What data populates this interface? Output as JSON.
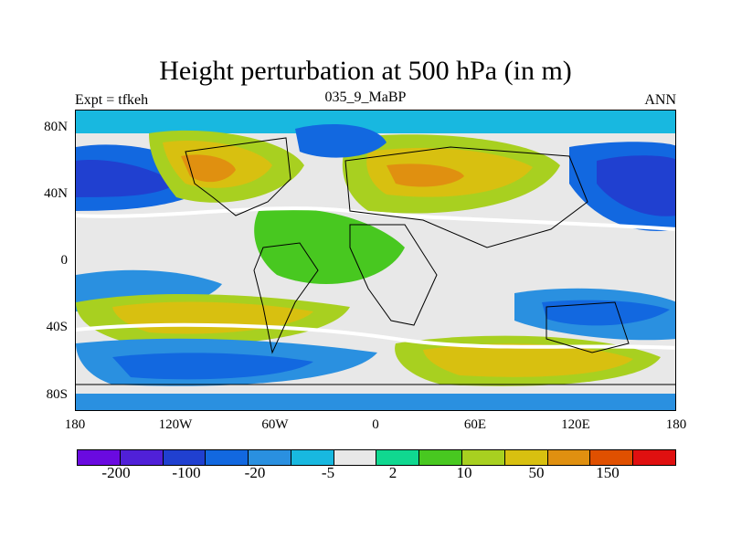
{
  "title": "Height perturbation at 500 hPa (in m)",
  "left_label": "Expt = tfkeh",
  "center_label": "035_9_MaBP",
  "right_label": "ANN",
  "y_ticks": [
    "80N",
    "40N",
    "0",
    "40S",
    "80S"
  ],
  "x_ticks": [
    "180",
    "120W",
    "60W",
    "0",
    "60E",
    "120E",
    "180"
  ],
  "colorbar": {
    "colors": [
      "#6a0ae0",
      "#5020d8",
      "#2040d0",
      "#1268e0",
      "#2a90e0",
      "#18b8e0",
      "#e8e8e8",
      "#10d890",
      "#48c820",
      "#a8d020",
      "#d8c010",
      "#e09010",
      "#e05000",
      "#e01010"
    ],
    "labels": [
      "-200",
      "-100",
      "-20",
      "-5",
      "2",
      "10",
      "50",
      "150"
    ]
  },
  "chart_data": {
    "type": "heatmap",
    "title": "Height perturbation at 500 hPa (in m)",
    "subtitle": "035_9_MaBP",
    "x_range": [
      -180,
      180
    ],
    "y_range": [
      -90,
      90
    ],
    "levels": [
      "-200",
      "-100",
      "-20",
      "-5",
      "2",
      "10",
      "50",
      "150"
    ]
  }
}
